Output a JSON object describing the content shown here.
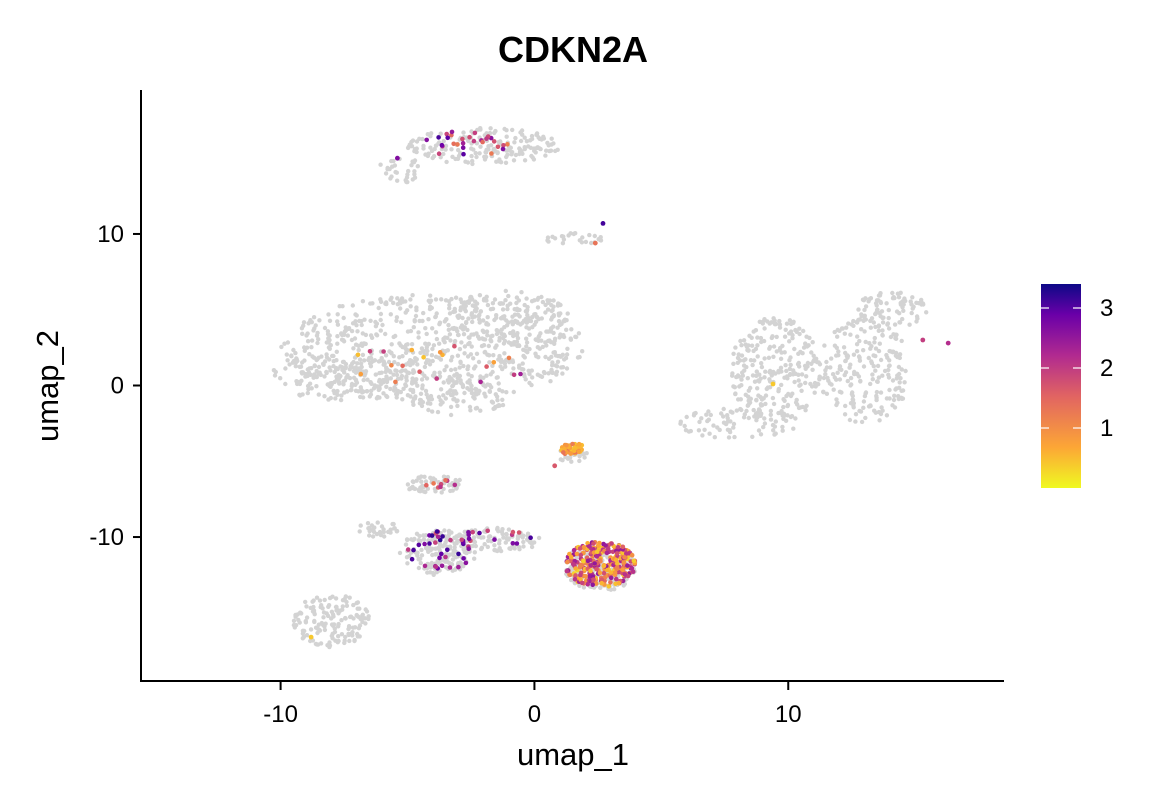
{
  "chart_data": {
    "type": "scatter",
    "title": "CDKN2A",
    "xlabel": "umap_1",
    "ylabel": "umap_2",
    "xlim": [
      -15.5,
      18.5
    ],
    "ylim": [
      -19.5,
      19.5
    ],
    "x_ticks": [
      -10,
      0,
      10
    ],
    "y_ticks": [
      -10,
      0,
      10
    ],
    "grid": false,
    "legend": {
      "type": "colorbar",
      "placement": "right",
      "min": 0,
      "max": 3.4,
      "ticks": [
        1,
        2,
        3
      ],
      "colors": [
        "#f0f921",
        "#fca636",
        "#e16462",
        "#b12a90",
        "#6a00a8",
        "#0d0887"
      ]
    },
    "background_color": "#d3d3d3",
    "background_regions": [
      {
        "cx": -4,
        "cy": 2.5,
        "rx": 6,
        "ry": 3.5,
        "n": 700
      },
      {
        "cx": -7.5,
        "cy": 0.5,
        "rx": 3,
        "ry": 1.5,
        "n": 150
      },
      {
        "cx": -3,
        "cy": -0.8,
        "rx": 2,
        "ry": 1.2,
        "n": 80
      },
      {
        "cx": -1,
        "cy": 4.5,
        "rx": 2.5,
        "ry": 1.8,
        "n": 140
      },
      {
        "cx": -2,
        "cy": 15.8,
        "rx": 3,
        "ry": 1.2,
        "n": 180
      },
      {
        "cx": -5.3,
        "cy": 14.3,
        "rx": 0.8,
        "ry": 1.0,
        "n": 30
      },
      {
        "cx": 1.5,
        "cy": 9.7,
        "rx": 1.2,
        "ry": 0.4,
        "n": 25
      },
      {
        "cx": 9.5,
        "cy": 1,
        "rx": 1.8,
        "ry": 3.5,
        "n": 250
      },
      {
        "cx": 8,
        "cy": -2.5,
        "rx": 2.5,
        "ry": 1.0,
        "n": 80
      },
      {
        "cx": 13,
        "cy": 1,
        "rx": 1.8,
        "ry": 3.5,
        "n": 220
      },
      {
        "cx": 14,
        "cy": 5,
        "rx": 1.5,
        "ry": 1.2,
        "n": 80
      },
      {
        "cx": 1.5,
        "cy": -4.5,
        "rx": 0.6,
        "ry": 0.6,
        "n": 30
      },
      {
        "cx": -4,
        "cy": -6.5,
        "rx": 1.2,
        "ry": 0.6,
        "n": 60
      },
      {
        "cx": -3.8,
        "cy": -11,
        "rx": 1.5,
        "ry": 1.5,
        "n": 160
      },
      {
        "cx": -1.5,
        "cy": -10.2,
        "rx": 1.8,
        "ry": 0.8,
        "n": 100
      },
      {
        "cx": 2.6,
        "cy": -12,
        "rx": 1.4,
        "ry": 1.6,
        "n": 220
      },
      {
        "cx": -8,
        "cy": -15.5,
        "rx": 1.5,
        "ry": 1.8,
        "n": 150
      },
      {
        "cx": -6,
        "cy": -9.5,
        "rx": 1.0,
        "ry": 0.5,
        "n": 30
      }
    ],
    "expressing_regions": [
      {
        "cx": 2.6,
        "cy": -11.8,
        "rx": 1.4,
        "ry": 1.5,
        "n": 280,
        "value_min": 0.3,
        "value_max": 2.4
      },
      {
        "cx": 1.5,
        "cy": -4.2,
        "rx": 0.5,
        "ry": 0.4,
        "n": 40,
        "value_min": 0.4,
        "value_max": 1.2
      },
      {
        "cx": -3.8,
        "cy": -11.0,
        "rx": 1.3,
        "ry": 1.4,
        "n": 35,
        "value_min": 1.5,
        "value_max": 3.3
      },
      {
        "cx": -1.5,
        "cy": -10.0,
        "rx": 1.6,
        "ry": 0.5,
        "n": 15,
        "value_min": 1.5,
        "value_max": 3.0
      },
      {
        "cx": -2.8,
        "cy": 16.0,
        "rx": 2.2,
        "ry": 1.0,
        "n": 30,
        "value_min": 1.0,
        "value_max": 3.0
      },
      {
        "cx": -3.5,
        "cy": -6.6,
        "rx": 0.8,
        "ry": 0.4,
        "n": 8,
        "value_min": 1.0,
        "value_max": 2.0
      },
      {
        "cx": -4,
        "cy": 1.2,
        "rx": 4,
        "ry": 1.5,
        "n": 20,
        "value_min": 0.4,
        "value_max": 2.5
      }
    ],
    "points": [
      {
        "x": 2.7,
        "y": 10.7,
        "value": 3.0
      },
      {
        "x": 15.3,
        "y": 3.0,
        "value": 1.8
      },
      {
        "x": 16.3,
        "y": 2.8,
        "value": 2.0
      },
      {
        "x": 9.4,
        "y": 0.1,
        "value": 0.4
      },
      {
        "x": -8.8,
        "y": -16.6,
        "value": 0.4
      },
      {
        "x": 0.8,
        "y": -5.3,
        "value": 1.5
      },
      {
        "x": 2.4,
        "y": 9.4,
        "value": 1.2
      },
      {
        "x": -5.4,
        "y": 15.0,
        "value": 2.5
      }
    ]
  }
}
